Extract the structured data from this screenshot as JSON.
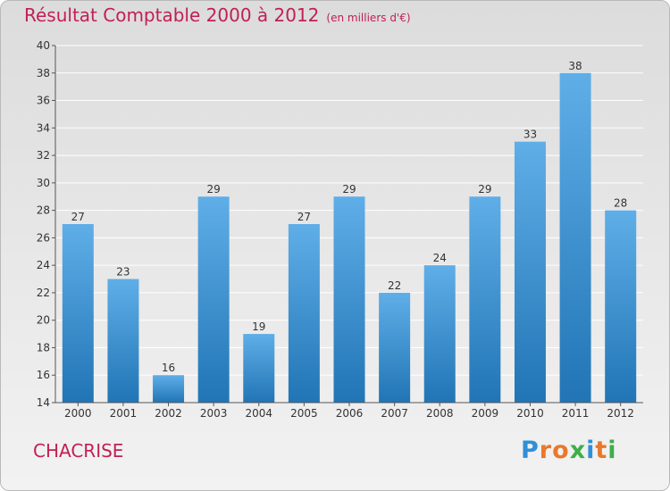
{
  "title": {
    "main": "Résultat Comptable 2000 à 2012",
    "subtitle": "(en milliers d'€)"
  },
  "location_label": "CHACRISE",
  "logo": {
    "text": "Proxiti",
    "letter_colors": [
      "#2f8fd8",
      "#e8782a",
      "#e8782a",
      "#3fae49",
      "#2f8fd8",
      "#e8782a",
      "#3fae49"
    ]
  },
  "colors": {
    "bar_top": "#5faee8",
    "bar_bottom": "#2175b5",
    "title": "#c21f52",
    "grid": "#ffffff"
  },
  "chart_data": {
    "type": "bar",
    "categories": [
      "2000",
      "2001",
      "2002",
      "2003",
      "2004",
      "2005",
      "2006",
      "2007",
      "2008",
      "2009",
      "2010",
      "2011",
      "2012"
    ],
    "values": [
      27,
      23,
      16,
      29,
      19,
      27,
      29,
      22,
      24,
      29,
      33,
      38,
      28
    ],
    "ylim": [
      14,
      40
    ],
    "yticks": [
      14,
      16,
      18,
      20,
      22,
      24,
      26,
      28,
      30,
      32,
      34,
      36,
      38,
      40
    ],
    "grid": true,
    "xlabel": "",
    "ylabel": ""
  }
}
